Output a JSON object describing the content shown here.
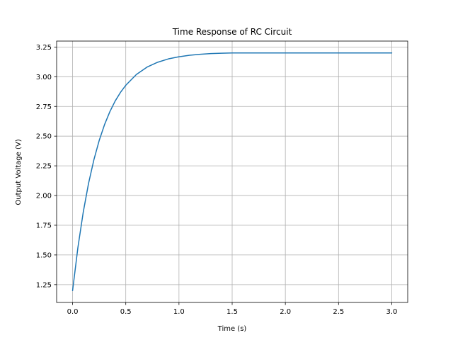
{
  "chart_data": {
    "type": "line",
    "title": "Time Response of RC Circuit",
    "xlabel": "Time (s)",
    "ylabel": "Output Voltage (V)",
    "xlim": [
      -0.15,
      3.15
    ],
    "ylim": [
      1.1,
      3.3
    ],
    "grid": true,
    "xticks": [
      0.0,
      0.5,
      1.0,
      1.5,
      2.0,
      2.5,
      3.0
    ],
    "xtick_labels": [
      "0.0",
      "0.5",
      "1.0",
      "1.5",
      "2.0",
      "2.5",
      "3.0"
    ],
    "yticks": [
      1.25,
      1.5,
      1.75,
      2.0,
      2.25,
      2.5,
      2.75,
      3.0,
      3.25
    ],
    "ytick_labels": [
      "1.25",
      "1.50",
      "1.75",
      "2.00",
      "2.25",
      "2.50",
      "2.75",
      "3.00",
      "3.25"
    ],
    "series": [
      {
        "color": "#1f77b4",
        "x": [
          0.0,
          0.05,
          0.1,
          0.15,
          0.2,
          0.25,
          0.3,
          0.35,
          0.4,
          0.45,
          0.5,
          0.6,
          0.7,
          0.8,
          0.9,
          1.0,
          1.1,
          1.2,
          1.3,
          1.4,
          1.5,
          1.75,
          2.0,
          2.25,
          2.5,
          2.75,
          3.0
        ],
        "y": [
          1.2,
          1.562,
          1.859,
          2.102,
          2.3,
          2.463,
          2.596,
          2.705,
          2.795,
          2.868,
          2.928,
          3.019,
          3.081,
          3.122,
          3.15,
          3.168,
          3.181,
          3.189,
          3.195,
          3.198,
          3.2,
          3.2,
          3.2,
          3.2,
          3.2,
          3.2,
          3.2
        ]
      }
    ]
  }
}
